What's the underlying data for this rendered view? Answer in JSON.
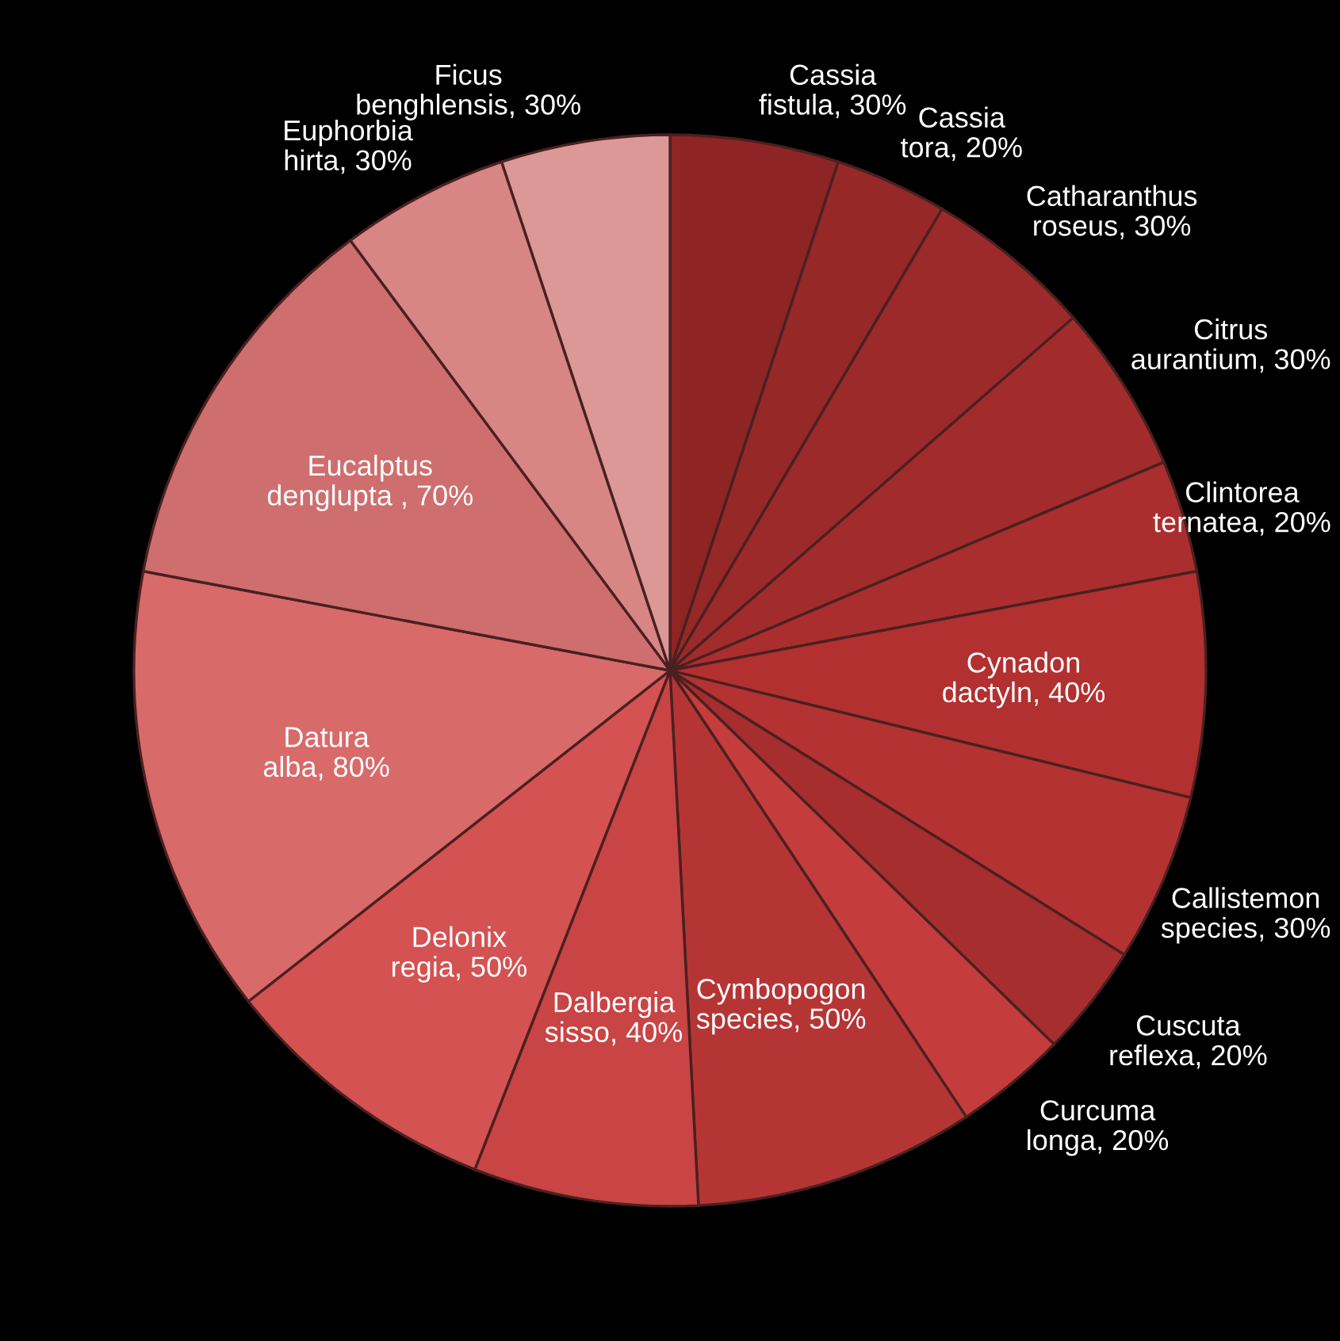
{
  "chart_data": {
    "type": "pie",
    "categories": [
      "Cassia fistula",
      "Cassia tora",
      "Catharanthus roseus",
      "Citrus aurantium",
      "Clintorea ternatea",
      "Cynadon dactyln",
      "Callistemon species",
      "Cuscuta reflexa",
      "Curcuma longa",
      "Cymbopogon species",
      "Dalbergia sisso",
      "Delonix regia",
      "Datura alba",
      "Eucalptus denglupta ",
      "Euphorbia hirta",
      "Ficus benghlensis"
    ],
    "values": [
      30,
      20,
      30,
      30,
      20,
      40,
      30,
      20,
      20,
      50,
      40,
      50,
      80,
      70,
      30,
      30
    ],
    "value_labels": [
      "30%",
      "20%",
      "30%",
      "30%",
      "20%",
      "40%",
      "30%",
      "20%",
      "20%",
      "50%",
      "40%",
      "50%",
      "80%",
      "70%",
      "30%",
      "30%"
    ],
    "colors": [
      "#8e2424",
      "#962828",
      "#9c2a2a",
      "#a22c2c",
      "#aa2e2e",
      "#b23030",
      "#b53232",
      "#a62e2e",
      "#c43c3c",
      "#b53535",
      "#c94444",
      "#d45252",
      "#d96a6a",
      "#cf6e6e",
      "#d88585",
      "#dc9797"
    ]
  }
}
